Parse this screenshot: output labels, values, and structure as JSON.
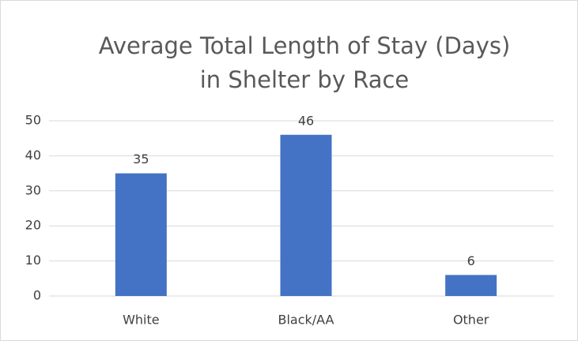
{
  "chart_data": {
    "type": "bar",
    "title": [
      "Average Total Length of Stay (Days)",
      "in Shelter by Race"
    ],
    "categories": [
      "White",
      "Black/AA",
      "Other"
    ],
    "values": [
      35,
      46,
      6
    ],
    "color": "#4472c4",
    "ylim": [
      0,
      50
    ],
    "yticks": [
      0,
      10,
      20,
      30,
      40,
      50
    ],
    "grid": true
  }
}
